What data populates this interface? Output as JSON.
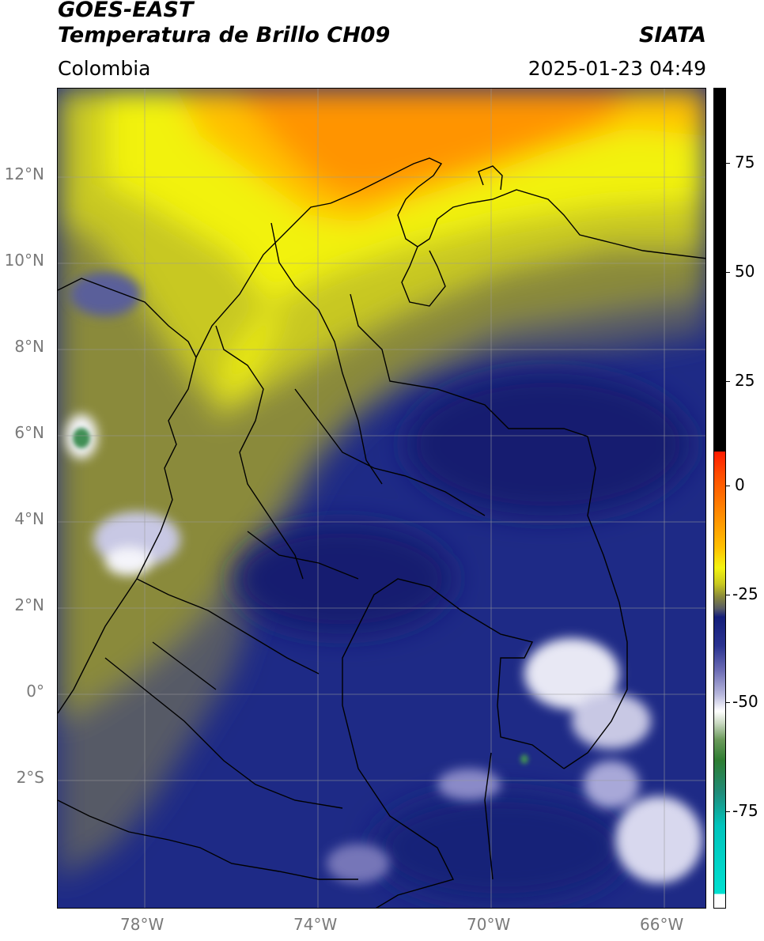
{
  "header": {
    "satellite": "GOES-EAST",
    "product": "Temperatura de Brillo CH09",
    "region": "Colombia",
    "agency": "SIATA",
    "timestamp": "2025-01-23 04:49"
  },
  "map": {
    "lon_range": [
      -80,
      -65
    ],
    "lat_range": [
      -4.5,
      14
    ],
    "lon_ticks": [
      "78°W",
      "74°W",
      "70°W",
      "66°W"
    ],
    "lat_ticks": [
      "12°N",
      "10°N",
      "8°N",
      "6°N",
      "4°N",
      "2°N",
      "0°",
      "2°S"
    ],
    "gridlines": true
  },
  "colorbar": {
    "range": [
      -95,
      90
    ],
    "ticks": [
      "75",
      "50",
      "25",
      "0",
      "-25",
      "-50",
      "-75"
    ]
  },
  "colors": {
    "deep_cold": "#f4f4fb",
    "navy": "#141e7a",
    "olive": "#8c8a2e",
    "yellow": "#f4f410",
    "orange": "#ff8c00",
    "red": "#ff1a00",
    "black": "#000000",
    "green": "#2e7d32",
    "cyan": "#00e0d0"
  }
}
